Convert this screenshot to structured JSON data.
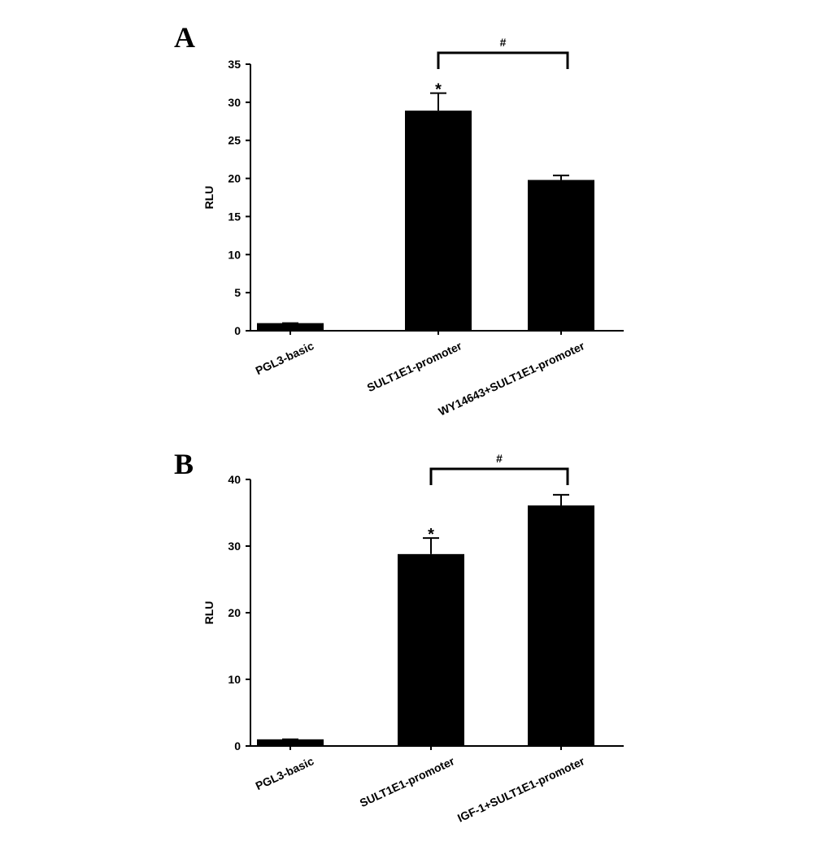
{
  "chart_data": [
    {
      "type": "bar",
      "label": "A",
      "y_label": "RLU",
      "categories": [
        "PGL3-basic",
        "SULT1E1-promoter",
        "WY14643+SULT1E1-promoter"
      ],
      "values": [
        1.0,
        28.9,
        19.8
      ],
      "errors": [
        0,
        2.3,
        0.6
      ],
      "color": "#000000",
      "ylim": [
        0,
        35
      ],
      "yticks": [
        0,
        5,
        10,
        15,
        20,
        25,
        30,
        35
      ],
      "annotations": [
        "*",
        "#"
      ]
    },
    {
      "type": "bar",
      "label": "B",
      "y_label": "RLU",
      "categories": [
        "PGL3-basic",
        "SULT1E1-promoter",
        "IGF-1+SULT1E1-promoter"
      ],
      "values": [
        1.0,
        28.8,
        36.1
      ],
      "errors": [
        0,
        2.4,
        1.6
      ],
      "color": "#000000",
      "ylim": [
        0,
        40
      ],
      "yticks": [
        0,
        10,
        20,
        30,
        40
      ],
      "annotations": [
        "*",
        "#"
      ]
    }
  ]
}
